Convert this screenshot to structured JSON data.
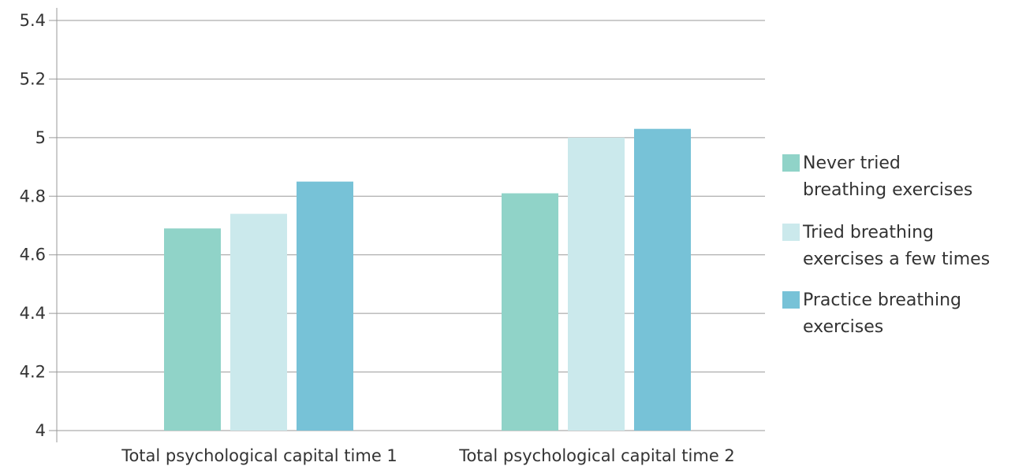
{
  "chart_data": {
    "type": "bar",
    "title": "",
    "xlabel": "",
    "ylabel": "",
    "categories": [
      "Total psychological capital time 1",
      "Total psychological capital time 2"
    ],
    "series": [
      {
        "name": "Never tried breathing exercises",
        "values": [
          4.69,
          4.81
        ],
        "color": "#90d3c8"
      },
      {
        "name": "Tried breathing exercises a few times",
        "values": [
          4.74,
          5.0
        ],
        "color": "#cbe9ec"
      },
      {
        "name": "Practice breathing exercises",
        "values": [
          4.85,
          5.03
        ],
        "color": "#77c2d7"
      }
    ],
    "ylim": [
      4,
      5.4
    ],
    "y_ticks": [
      4,
      4.2,
      4.4,
      4.6,
      4.8,
      5,
      5.2,
      5.4
    ],
    "y_tick_labels": [
      "4",
      "4.2",
      "4.4",
      "4.6",
      "4.8",
      "5",
      "5.2",
      "5.4"
    ],
    "grid": true,
    "legend_position": "right"
  }
}
